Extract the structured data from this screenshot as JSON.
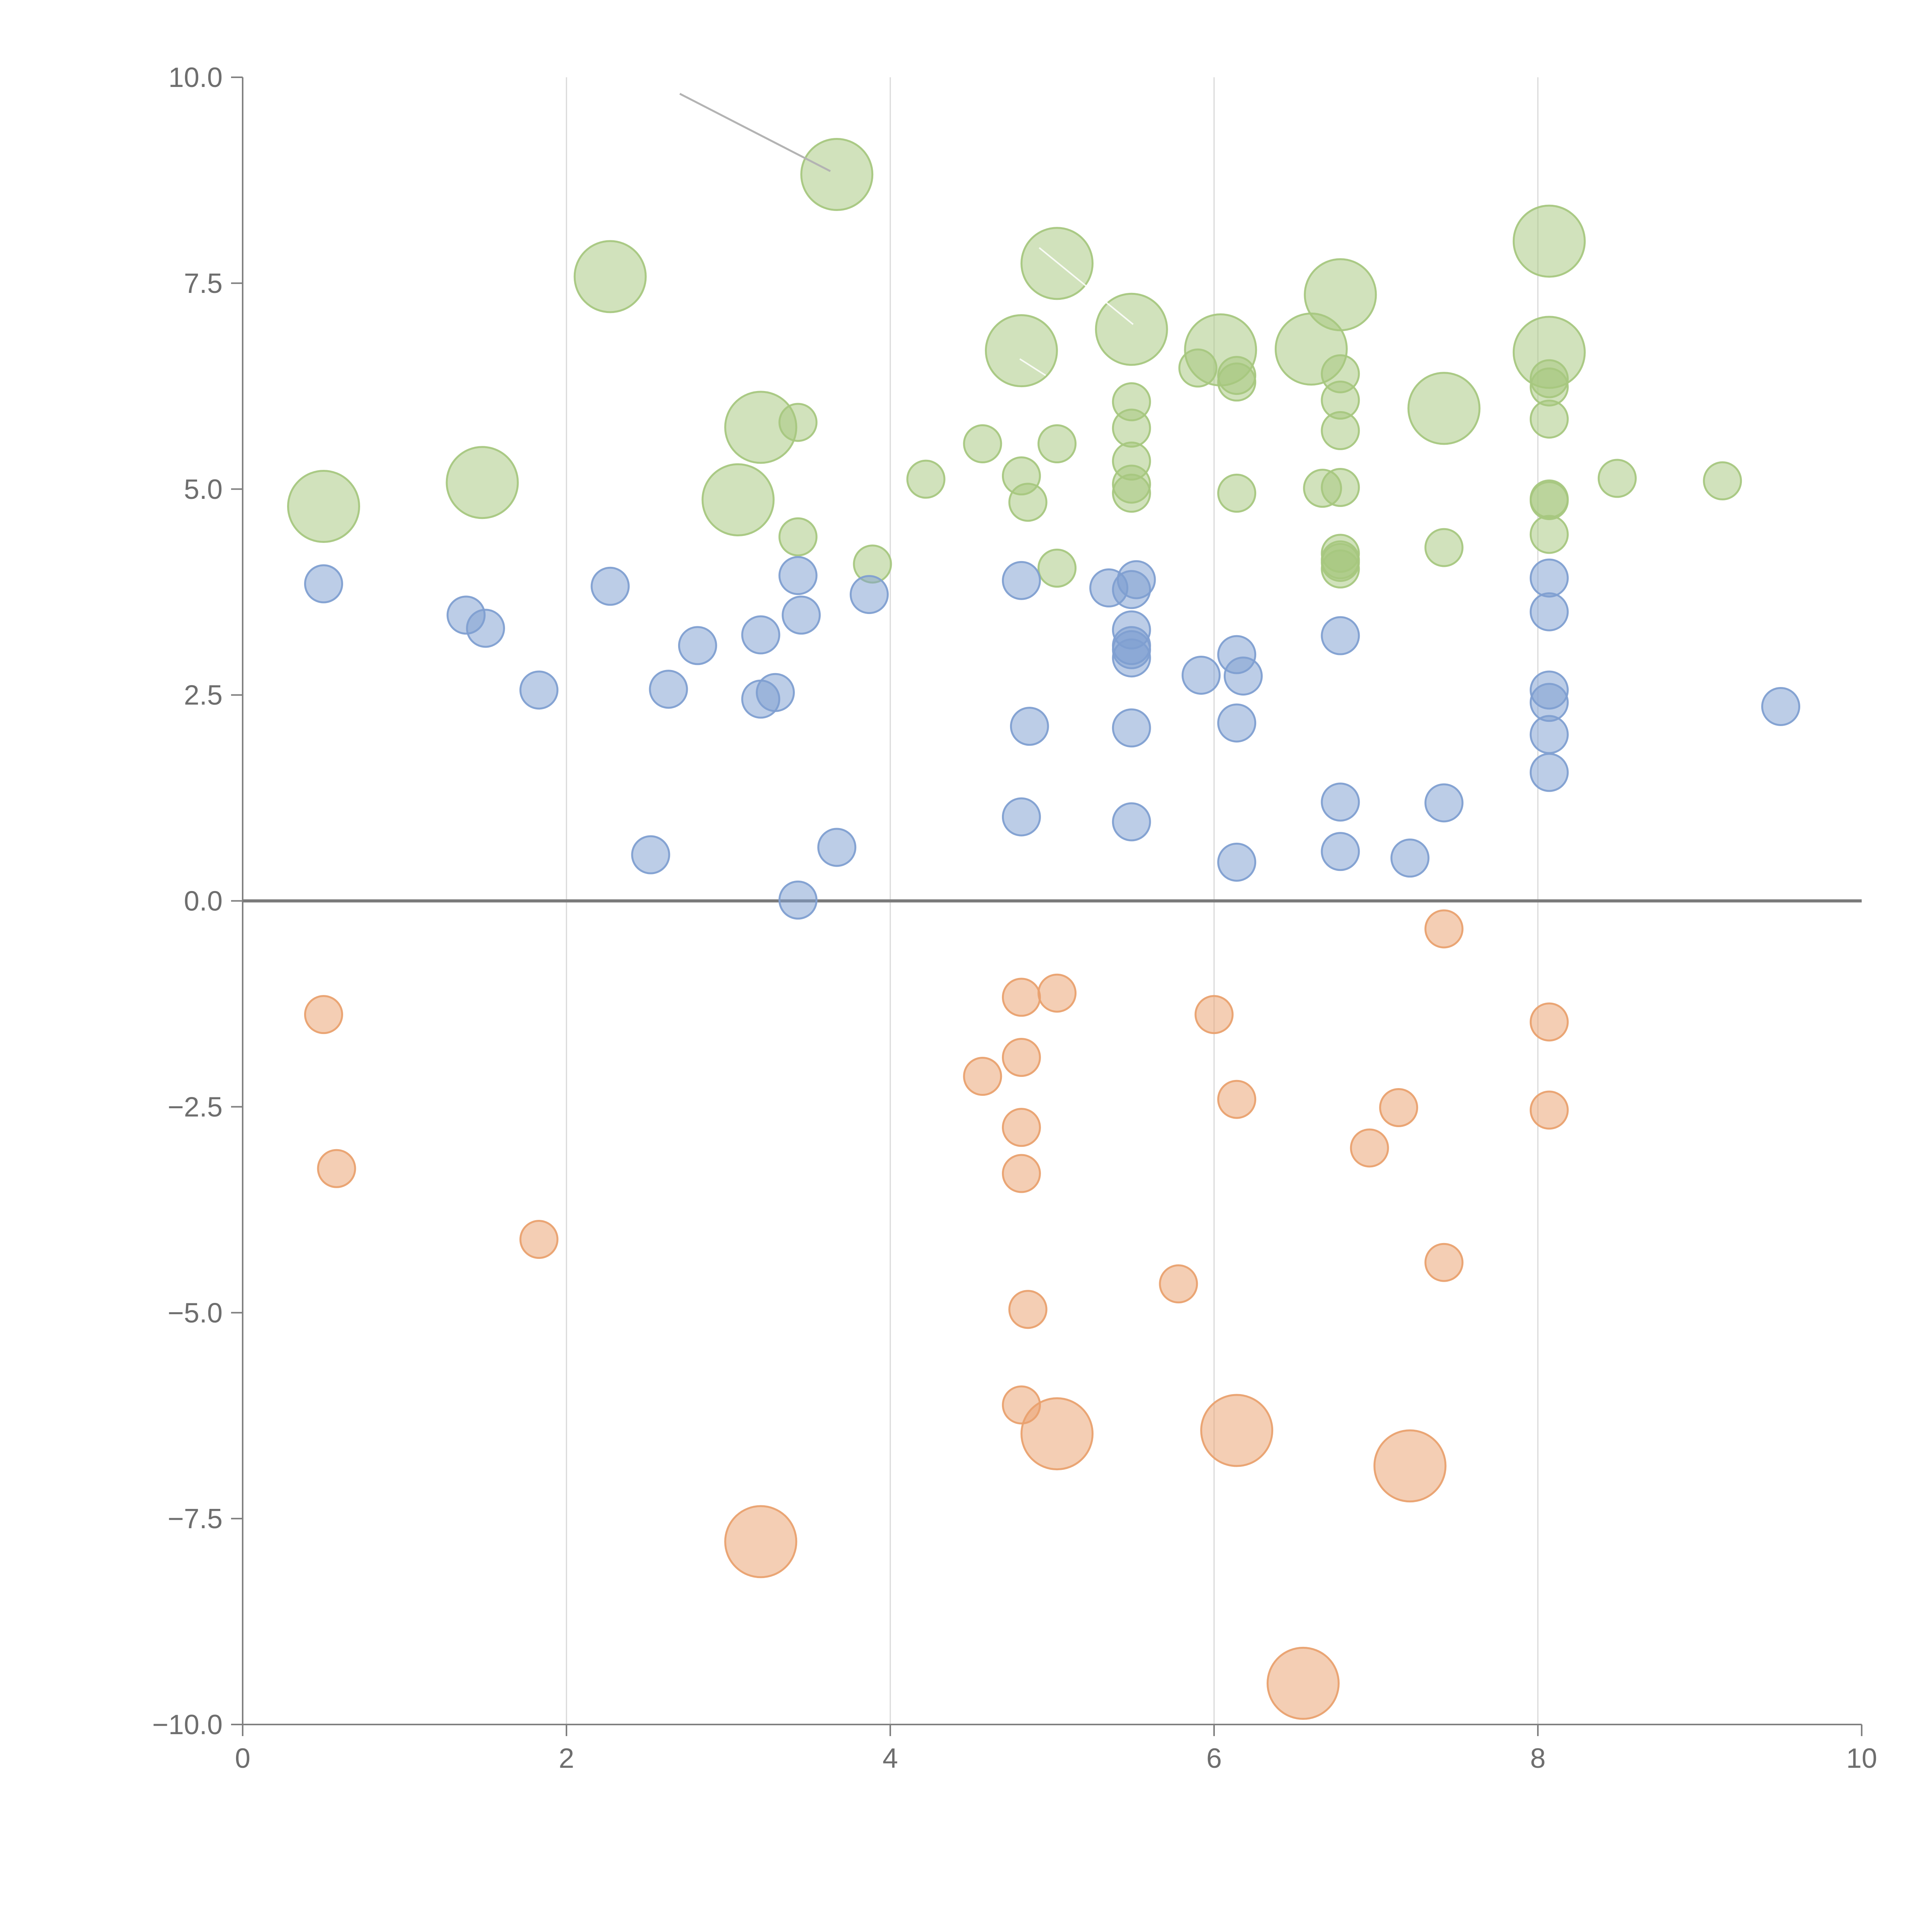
{
  "chart_data": {
    "type": "scatter",
    "title": "",
    "xlabel": "",
    "ylabel": "",
    "xlim": [
      0,
      10
    ],
    "ylim": [
      -10,
      10
    ],
    "x_ticks": [
      "0",
      "2",
      "4",
      "6",
      "8",
      "10"
    ],
    "y_ticks": [
      "10.0",
      "7.5",
      "5.0",
      "2.5",
      "0.0",
      "−2.5",
      "−5.0",
      "−7.5",
      "−10.0"
    ],
    "x_gridlines": [
      2,
      4,
      6,
      8
    ],
    "zero_line": 0,
    "colors": {
      "green": "#a7c77f",
      "blue": "#7f9fd1",
      "orange": "#e9a16f",
      "axis": "#808080",
      "grid": "#d9d9d9",
      "zero": "#7a7a7a",
      "leader": "#b3b3b3"
    },
    "series": [
      {
        "name": "green",
        "color": "#a7c77f",
        "points": [
          {
            "x": 3.67,
            "y": 8.82,
            "s": 2
          },
          {
            "x": 2.27,
            "y": 7.58,
            "s": 2
          },
          {
            "x": 5.03,
            "y": 7.74,
            "s": 2
          },
          {
            "x": 8.07,
            "y": 8.01,
            "s": 2
          },
          {
            "x": 6.78,
            "y": 7.36,
            "s": 2
          },
          {
            "x": 5.49,
            "y": 6.94,
            "s": 2
          },
          {
            "x": 4.81,
            "y": 6.68,
            "s": 2
          },
          {
            "x": 6.04,
            "y": 6.69,
            "s": 2
          },
          {
            "x": 6.6,
            "y": 6.7,
            "s": 2
          },
          {
            "x": 8.07,
            "y": 6.66,
            "s": 2
          },
          {
            "x": 7.42,
            "y": 5.98,
            "s": 2
          },
          {
            "x": 3.2,
            "y": 5.75,
            "s": 2
          },
          {
            "x": 1.48,
            "y": 5.08,
            "s": 2
          },
          {
            "x": 3.06,
            "y": 4.87,
            "s": 2
          },
          {
            "x": 0.5,
            "y": 4.79,
            "s": 2
          },
          {
            "x": 5.9,
            "y": 6.47,
            "s": 1
          },
          {
            "x": 6.14,
            "y": 6.38,
            "s": 1
          },
          {
            "x": 6.14,
            "y": 6.3,
            "s": 1
          },
          {
            "x": 6.78,
            "y": 6.4,
            "s": 1
          },
          {
            "x": 6.78,
            "y": 6.08,
            "s": 1
          },
          {
            "x": 6.78,
            "y": 5.71,
            "s": 1
          },
          {
            "x": 8.07,
            "y": 6.34,
            "s": 1
          },
          {
            "x": 8.07,
            "y": 6.24,
            "s": 1
          },
          {
            "x": 8.07,
            "y": 5.85,
            "s": 1
          },
          {
            "x": 5.49,
            "y": 6.06,
            "s": 1
          },
          {
            "x": 5.49,
            "y": 5.74,
            "s": 1
          },
          {
            "x": 5.49,
            "y": 5.34,
            "s": 1
          },
          {
            "x": 5.49,
            "y": 5.06,
            "s": 1
          },
          {
            "x": 5.49,
            "y": 4.95,
            "s": 1
          },
          {
            "x": 3.43,
            "y": 5.81,
            "s": 1
          },
          {
            "x": 4.57,
            "y": 5.55,
            "s": 1
          },
          {
            "x": 5.03,
            "y": 5.55,
            "s": 1
          },
          {
            "x": 4.22,
            "y": 5.12,
            "s": 1
          },
          {
            "x": 4.81,
            "y": 5.16,
            "s": 1
          },
          {
            "x": 4.85,
            "y": 4.84,
            "s": 1
          },
          {
            "x": 6.14,
            "y": 4.95,
            "s": 1
          },
          {
            "x": 6.67,
            "y": 5.01,
            "s": 1
          },
          {
            "x": 6.78,
            "y": 5.02,
            "s": 1
          },
          {
            "x": 8.49,
            "y": 5.13,
            "s": 1
          },
          {
            "x": 9.14,
            "y": 5.1,
            "s": 1
          },
          {
            "x": 8.07,
            "y": 4.88,
            "s": 1
          },
          {
            "x": 8.07,
            "y": 4.86,
            "s": 1
          },
          {
            "x": 8.07,
            "y": 4.45,
            "s": 1
          },
          {
            "x": 3.43,
            "y": 4.42,
            "s": 1
          },
          {
            "x": 6.78,
            "y": 4.22,
            "s": 1
          },
          {
            "x": 6.78,
            "y": 4.14,
            "s": 1
          },
          {
            "x": 6.78,
            "y": 4.11,
            "s": 1
          },
          {
            "x": 6.78,
            "y": 4.03,
            "s": 1
          },
          {
            "x": 7.42,
            "y": 4.29,
            "s": 1
          },
          {
            "x": 3.89,
            "y": 4.09,
            "s": 1
          },
          {
            "x": 5.03,
            "y": 4.04,
            "s": 1
          }
        ]
      },
      {
        "name": "blue",
        "color": "#7f9fd1",
        "points": [
          {
            "x": 0.5,
            "y": 3.85,
            "s": 1
          },
          {
            "x": 1.38,
            "y": 3.47,
            "s": 1
          },
          {
            "x": 1.5,
            "y": 3.31,
            "s": 1
          },
          {
            "x": 2.27,
            "y": 3.82,
            "s": 1
          },
          {
            "x": 1.83,
            "y": 2.56,
            "s": 1
          },
          {
            "x": 2.63,
            "y": 2.57,
            "s": 1
          },
          {
            "x": 2.81,
            "y": 3.1,
            "s": 1
          },
          {
            "x": 3.2,
            "y": 3.23,
            "s": 1
          },
          {
            "x": 3.43,
            "y": 3.95,
            "s": 1
          },
          {
            "x": 3.45,
            "y": 3.47,
            "s": 1
          },
          {
            "x": 3.2,
            "y": 2.45,
            "s": 1
          },
          {
            "x": 3.29,
            "y": 2.53,
            "s": 1
          },
          {
            "x": 3.87,
            "y": 3.72,
            "s": 1
          },
          {
            "x": 4.81,
            "y": 3.89,
            "s": 1
          },
          {
            "x": 5.35,
            "y": 3.8,
            "s": 1
          },
          {
            "x": 5.52,
            "y": 3.9,
            "s": 1
          },
          {
            "x": 5.49,
            "y": 3.78,
            "s": 1
          },
          {
            "x": 5.49,
            "y": 3.29,
            "s": 1
          },
          {
            "x": 5.49,
            "y": 3.1,
            "s": 1
          },
          {
            "x": 5.49,
            "y": 3.05,
            "s": 1
          },
          {
            "x": 5.49,
            "y": 2.95,
            "s": 1
          },
          {
            "x": 5.92,
            "y": 2.74,
            "s": 1
          },
          {
            "x": 6.14,
            "y": 2.99,
            "s": 1
          },
          {
            "x": 6.18,
            "y": 2.73,
            "s": 1
          },
          {
            "x": 6.14,
            "y": 2.16,
            "s": 1
          },
          {
            "x": 4.86,
            "y": 2.12,
            "s": 1
          },
          {
            "x": 5.49,
            "y": 2.1,
            "s": 1
          },
          {
            "x": 6.78,
            "y": 3.22,
            "s": 1
          },
          {
            "x": 8.07,
            "y": 3.92,
            "s": 1
          },
          {
            "x": 8.07,
            "y": 3.51,
            "s": 1
          },
          {
            "x": 8.07,
            "y": 2.56,
            "s": 1
          },
          {
            "x": 8.07,
            "y": 2.41,
            "s": 1
          },
          {
            "x": 8.07,
            "y": 2.02,
            "s": 1
          },
          {
            "x": 8.07,
            "y": 1.56,
            "s": 1
          },
          {
            "x": 9.5,
            "y": 2.36,
            "s": 1
          },
          {
            "x": 6.78,
            "y": 1.2,
            "s": 1
          },
          {
            "x": 7.42,
            "y": 1.19,
            "s": 1
          },
          {
            "x": 4.81,
            "y": 1.02,
            "s": 1
          },
          {
            "x": 5.49,
            "y": 0.96,
            "s": 1
          },
          {
            "x": 6.78,
            "y": 0.6,
            "s": 1
          },
          {
            "x": 7.21,
            "y": 0.52,
            "s": 1
          },
          {
            "x": 6.14,
            "y": 0.47,
            "s": 1
          },
          {
            "x": 2.52,
            "y": 0.56,
            "s": 1
          },
          {
            "x": 3.67,
            "y": 0.65,
            "s": 1
          },
          {
            "x": 3.43,
            "y": 0.01,
            "s": 1
          }
        ]
      },
      {
        "name": "orange",
        "color": "#e9a16f",
        "points": [
          {
            "x": 7.42,
            "y": -0.34,
            "s": 1
          },
          {
            "x": 0.5,
            "y": -1.38,
            "s": 1
          },
          {
            "x": 4.81,
            "y": -1.17,
            "s": 1
          },
          {
            "x": 5.03,
            "y": -1.12,
            "s": 1
          },
          {
            "x": 6.0,
            "y": -1.38,
            "s": 1
          },
          {
            "x": 8.07,
            "y": -1.47,
            "s": 1
          },
          {
            "x": 4.81,
            "y": -1.9,
            "s": 1
          },
          {
            "x": 4.57,
            "y": -2.13,
            "s": 1
          },
          {
            "x": 6.14,
            "y": -2.41,
            "s": 1
          },
          {
            "x": 7.14,
            "y": -2.51,
            "s": 1
          },
          {
            "x": 8.07,
            "y": -2.54,
            "s": 1
          },
          {
            "x": 4.81,
            "y": -2.75,
            "s": 1
          },
          {
            "x": 6.96,
            "y": -3.0,
            "s": 1
          },
          {
            "x": 4.81,
            "y": -3.31,
            "s": 1
          },
          {
            "x": 0.58,
            "y": -3.25,
            "s": 1
          },
          {
            "x": 1.83,
            "y": -4.11,
            "s": 1
          },
          {
            "x": 7.42,
            "y": -4.39,
            "s": 1
          },
          {
            "x": 5.78,
            "y": -4.65,
            "s": 1
          },
          {
            "x": 4.85,
            "y": -4.96,
            "s": 1
          },
          {
            "x": 4.81,
            "y": -6.12,
            "s": 1
          },
          {
            "x": 5.03,
            "y": -6.47,
            "s": 2
          },
          {
            "x": 6.14,
            "y": -6.43,
            "s": 2
          },
          {
            "x": 7.21,
            "y": -6.86,
            "s": 2
          },
          {
            "x": 3.2,
            "y": -7.78,
            "s": 2
          },
          {
            "x": 6.55,
            "y": -9.5,
            "s": 2
          }
        ]
      }
    ],
    "leader_lines": [
      {
        "series": "green",
        "x1": 2.7,
        "y1": 9.8,
        "x2": 3.63,
        "y2": 8.86
      },
      {
        "series": "white",
        "x1": 3.45,
        "y1": 8.4,
        "x2": 3.95,
        "y2": 8.14
      },
      {
        "series": "white",
        "x1": 4.92,
        "y1": 7.93,
        "x2": 5.5,
        "y2": 7.0
      },
      {
        "series": "white",
        "x1": 4.8,
        "y1": 6.58,
        "x2": 4.96,
        "y2": 6.38
      }
    ]
  }
}
